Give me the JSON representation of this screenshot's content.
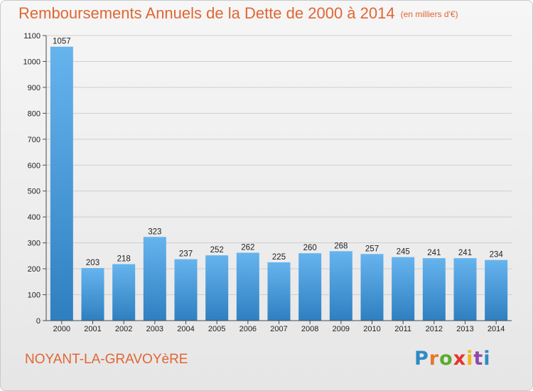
{
  "header": {
    "title": "Remboursements Annuels de la Dette de 2000 à 2014",
    "subtitle": "(en milliers d'€)"
  },
  "footer": {
    "commune": "NOYANT-LA-GRAVOYèRE",
    "logo_text": "Proxiti",
    "logo_colors": [
      "#2f8ac6",
      "#e8772b",
      "#5aab2e",
      "#e5352a",
      "#f0b51c",
      "#8f4aa8",
      "#2f8ac6"
    ]
  },
  "chart_data": {
    "type": "bar",
    "title": "Remboursements Annuels de la Dette de 2000 à 2014",
    "subtitle": "(en milliers d'€)",
    "categories": [
      "2000",
      "2001",
      "2002",
      "2003",
      "2004",
      "2005",
      "2006",
      "2007",
      "2008",
      "2009",
      "2010",
      "2011",
      "2012",
      "2013",
      "2014"
    ],
    "values": [
      1057,
      203,
      218,
      323,
      237,
      252,
      262,
      225,
      260,
      268,
      257,
      245,
      241,
      241,
      234
    ],
    "ylim": [
      0,
      1100
    ],
    "yticks": [
      0,
      100,
      200,
      300,
      400,
      500,
      600,
      700,
      800,
      900,
      1000,
      1100
    ],
    "grid": true,
    "colors": {
      "bar_light": "#66b4ee",
      "bar_dark": "#2f7fc0",
      "axis": "#4a4a4a",
      "grid": "#cfcfcf",
      "label": "#222222"
    }
  }
}
